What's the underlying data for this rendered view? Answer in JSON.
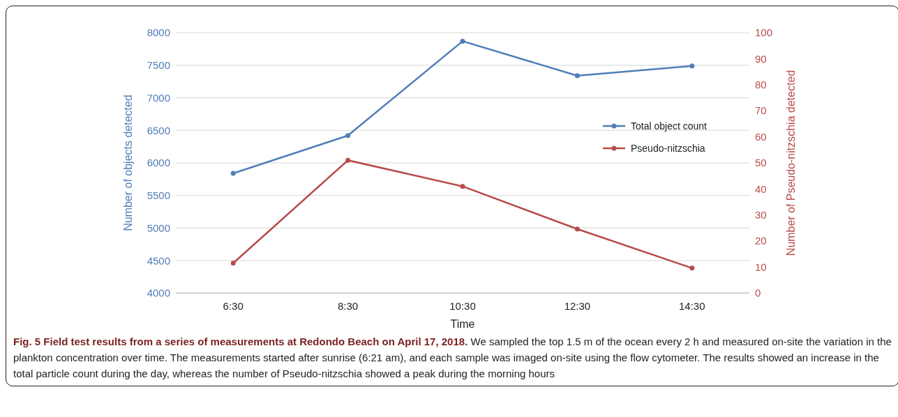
{
  "chart_data": {
    "type": "line",
    "xlabel": "Time",
    "ylabel": "Number of objects detected",
    "y2label": "Number of Pseudo-nitzschia detected",
    "categories": [
      "6:30",
      "8:30",
      "10:30",
      "12:30",
      "14:30"
    ],
    "series": [
      {
        "name": "Total object count",
        "color": "#4f7db8",
        "values": [
          5840,
          6420,
          7870,
          7340,
          7490
        ]
      },
      {
        "name": "Pseudo-nitzschia",
        "color": "#b84a4a",
        "axis": "y2",
        "values": [
          11.5,
          51,
          41,
          24.6,
          9.6
        ]
      }
    ],
    "ylim": [
      4000,
      8000
    ],
    "yticks": [
      4000,
      4500,
      5000,
      5500,
      6000,
      6500,
      7000,
      7500,
      8000
    ],
    "y2lim": [
      0,
      100
    ],
    "y2ticks": [
      0,
      10,
      20,
      30,
      40,
      50,
      60,
      70,
      80,
      90,
      100
    ],
    "grid": "y",
    "legend": "right",
    "marker": "circle",
    "annotations": [
      "Fig. 5 Field test results from a series of measurements at Redondo Beach on April 17, 2018.",
      "We sampled the top 1.5 m of the ocean every 2 h and measured on-site the variation in the plankton concentration over time. The measurements started after sunrise (6:21 am), and each sample was imaged on-site using the flow cytometer. The results showed an increase in the total particle count during the day, whereas the number of Pseudo-nitzschia showed a peak during the morning hours"
    ]
  }
}
